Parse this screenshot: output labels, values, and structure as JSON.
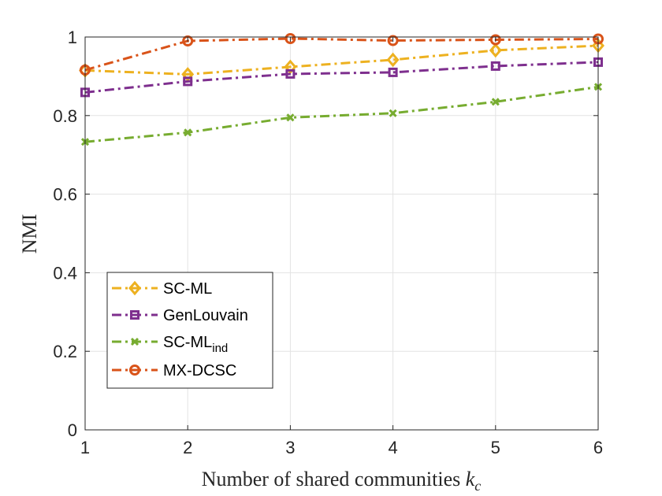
{
  "chart_data": {
    "type": "line",
    "title": "",
    "xlabel": "Number of shared communities",
    "xlabel_var": "k",
    "xlabel_sub": "c",
    "ylabel": "NMI",
    "xlim": [
      1,
      6
    ],
    "ylim": [
      0,
      1
    ],
    "xticks": [
      "1",
      "2",
      "3",
      "4",
      "5",
      "6"
    ],
    "yticks": [
      "0",
      "0.2",
      "0.4",
      "0.6",
      "0.8",
      "1"
    ],
    "grid": true,
    "legend_position": "lower-left",
    "x": [
      1,
      2,
      3,
      4,
      5,
      6
    ],
    "series": [
      {
        "name": "SC-ML",
        "name_sub": "",
        "color": "#EDB120",
        "marker": "diamond",
        "values": [
          0.915,
          0.905,
          0.924,
          0.942,
          0.966,
          0.978
        ]
      },
      {
        "name": "GenLouvain",
        "name_sub": "",
        "color": "#7E2F8E",
        "marker": "square",
        "values": [
          0.859,
          0.887,
          0.906,
          0.91,
          0.926,
          0.936
        ]
      },
      {
        "name": "SC-ML",
        "name_sub": "ind",
        "color": "#77AC30",
        "marker": "x",
        "values": [
          0.733,
          0.757,
          0.795,
          0.806,
          0.835,
          0.873
        ]
      },
      {
        "name": "MX-DCSC",
        "name_sub": "",
        "color": "#D95319",
        "marker": "circle",
        "values": [
          0.916,
          0.99,
          0.996,
          0.991,
          0.993,
          0.995
        ]
      }
    ]
  }
}
